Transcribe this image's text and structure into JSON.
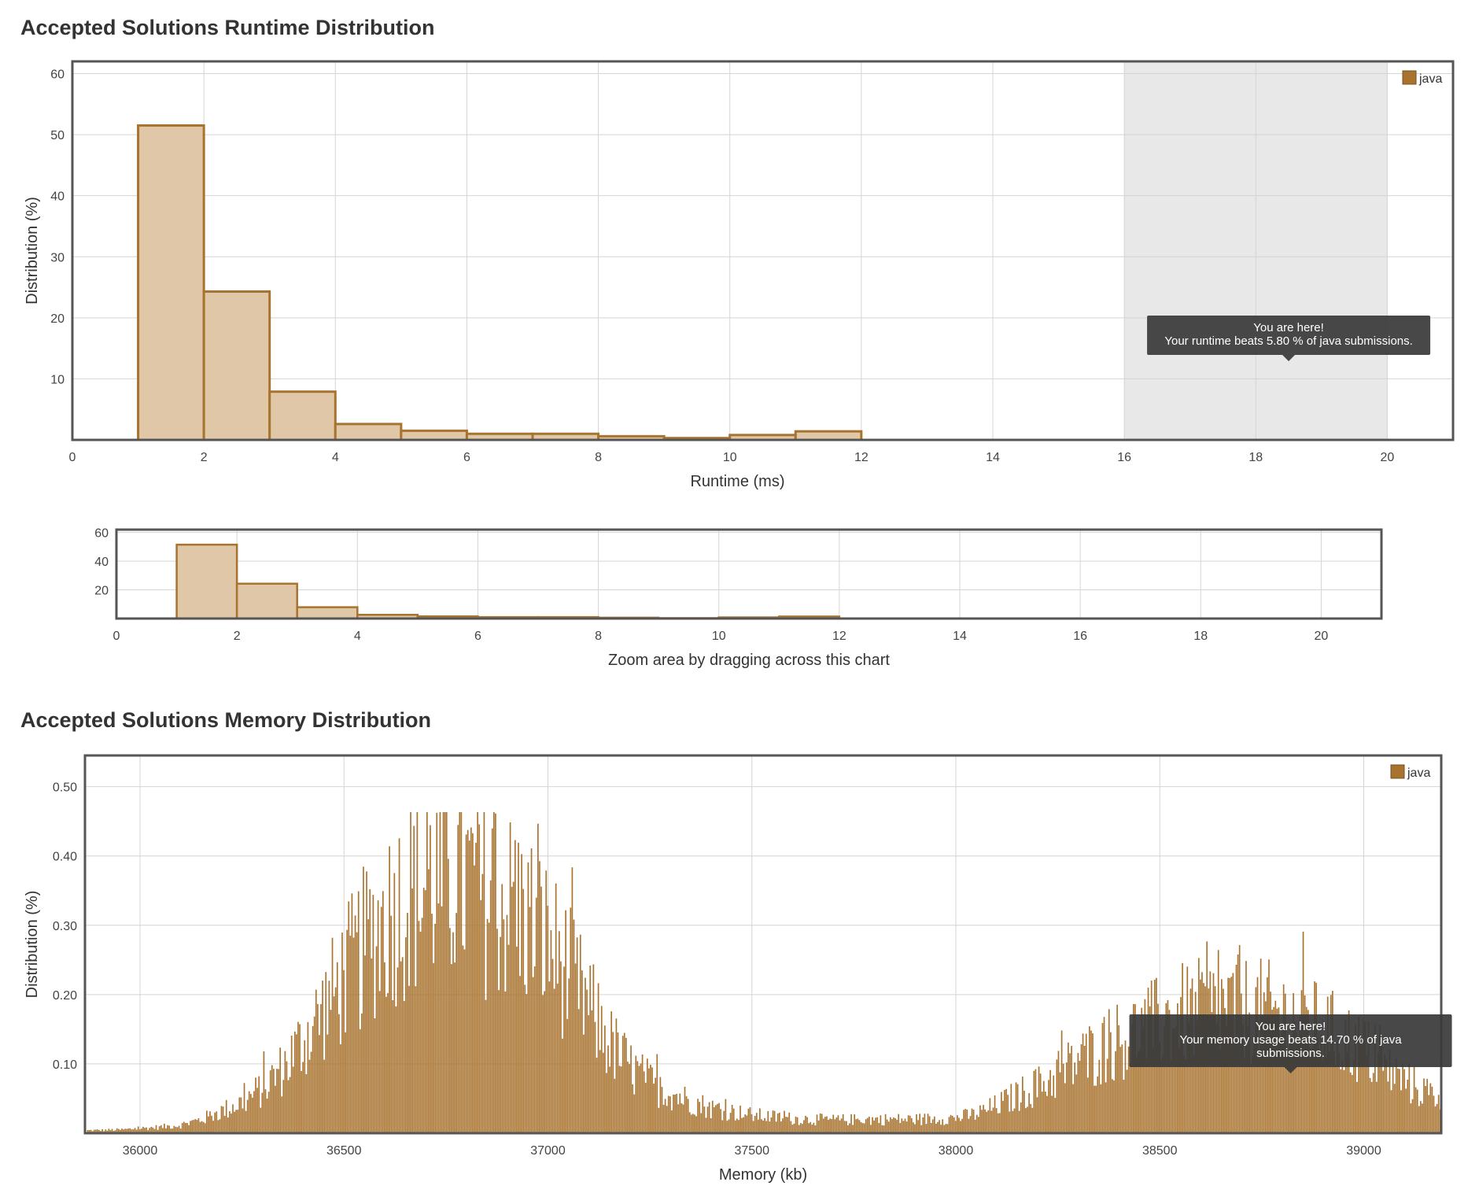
{
  "runtime_section": {
    "title": "Accepted Solutions Runtime Distribution"
  },
  "memory_section": {
    "title": "Accepted Solutions Memory Distribution"
  },
  "colors": {
    "bar_stroke": "#a8732f",
    "bar_fill": "#dfc7a7",
    "memory_fill": "#a8732f",
    "grid": "#d4d4d4",
    "frame": "#555555",
    "highlight": "#e8e8e8",
    "tooltip": "#3a3a3a"
  },
  "chart_data": [
    {
      "id": "runtime",
      "type": "bar",
      "xlabel": "Runtime (ms)",
      "ylabel": "Distribution (%)",
      "xlim": [
        0,
        21
      ],
      "ylim": [
        0,
        62
      ],
      "xticks": [
        0,
        2,
        4,
        6,
        8,
        10,
        12,
        14,
        16,
        18,
        20
      ],
      "yticks": [
        10,
        20,
        30,
        40,
        50,
        60
      ],
      "grid": true,
      "legend": {
        "position": "top-right",
        "entries": [
          "java"
        ]
      },
      "bins": [
        {
          "x0": 1,
          "x1": 2,
          "value": 51.5
        },
        {
          "x0": 2,
          "x1": 3,
          "value": 24.3
        },
        {
          "x0": 3,
          "x1": 4,
          "value": 7.9
        },
        {
          "x0": 4,
          "x1": 5,
          "value": 2.6
        },
        {
          "x0": 5,
          "x1": 6,
          "value": 1.5
        },
        {
          "x0": 6,
          "x1": 7,
          "value": 1.0
        },
        {
          "x0": 7,
          "x1": 8,
          "value": 1.0
        },
        {
          "x0": 8,
          "x1": 9,
          "value": 0.6
        },
        {
          "x0": 9,
          "x1": 10,
          "value": 0.3
        },
        {
          "x0": 10,
          "x1": 11,
          "value": 0.8
        },
        {
          "x0": 11,
          "x1": 12,
          "value": 1.4
        }
      ],
      "highlight_range": [
        16,
        20
      ],
      "tooltip": {
        "line1": "You are here!",
        "line2": "Your runtime beats 5.80 % of java submissions.",
        "x": 18.5
      }
    },
    {
      "id": "zoom",
      "type": "bar",
      "xlabel": "Zoom area by dragging across this chart",
      "xlim": [
        0,
        21
      ],
      "ylim": [
        0,
        62
      ],
      "xticks": [
        0,
        2,
        4,
        6,
        8,
        10,
        12,
        14,
        16,
        18,
        20
      ],
      "yticks": [
        20,
        40,
        60
      ],
      "grid": true
    },
    {
      "id": "memory",
      "type": "bar",
      "xlabel": "Memory (kb)",
      "ylabel": "Distribution (%)",
      "xlim": [
        35865,
        39190
      ],
      "ylim": [
        0,
        0.545
      ],
      "xticks": [
        36000,
        36500,
        37000,
        37500,
        38000,
        38500,
        39000
      ],
      "yticks": [
        0.1,
        0.2,
        0.3,
        0.4,
        0.5
      ],
      "ytick_labels": [
        "0.10",
        "0.20",
        "0.30",
        "0.40",
        "0.50"
      ],
      "grid": true,
      "legend": {
        "position": "top-right",
        "entries": [
          "java"
        ]
      },
      "bin_width_kb": 4,
      "envelope": [
        [
          35870,
          0.004
        ],
        [
          35950,
          0.005
        ],
        [
          36000,
          0.007
        ],
        [
          36050,
          0.009
        ],
        [
          36100,
          0.012
        ],
        [
          36150,
          0.02
        ],
        [
          36200,
          0.032
        ],
        [
          36250,
          0.045
        ],
        [
          36300,
          0.065
        ],
        [
          36350,
          0.095
        ],
        [
          36400,
          0.135
        ],
        [
          36450,
          0.18
        ],
        [
          36500,
          0.225
        ],
        [
          36550,
          0.27
        ],
        [
          36600,
          0.31
        ],
        [
          36650,
          0.34
        ],
        [
          36700,
          0.36
        ],
        [
          36750,
          0.365
        ],
        [
          36800,
          0.36
        ],
        [
          36850,
          0.345
        ],
        [
          36900,
          0.33
        ],
        [
          36950,
          0.31
        ],
        [
          37000,
          0.275
        ],
        [
          37050,
          0.23
        ],
        [
          37100,
          0.18
        ],
        [
          37150,
          0.13
        ],
        [
          37200,
          0.095
        ],
        [
          37250,
          0.072
        ],
        [
          37300,
          0.058
        ],
        [
          37350,
          0.046
        ],
        [
          37400,
          0.036
        ],
        [
          37500,
          0.026
        ],
        [
          37600,
          0.021
        ],
        [
          37700,
          0.019
        ],
        [
          37800,
          0.02
        ],
        [
          37900,
          0.02
        ],
        [
          38000,
          0.022
        ],
        [
          38050,
          0.028
        ],
        [
          38100,
          0.04
        ],
        [
          38150,
          0.055
        ],
        [
          38200,
          0.068
        ],
        [
          38250,
          0.085
        ],
        [
          38300,
          0.105
        ],
        [
          38350,
          0.12
        ],
        [
          38400,
          0.135
        ],
        [
          38450,
          0.145
        ],
        [
          38500,
          0.16
        ],
        [
          38550,
          0.17
        ],
        [
          38600,
          0.175
        ],
        [
          38650,
          0.18
        ],
        [
          38700,
          0.178
        ],
        [
          38750,
          0.175
        ],
        [
          38800,
          0.17
        ],
        [
          38850,
          0.162
        ],
        [
          38900,
          0.15
        ],
        [
          38950,
          0.135
        ],
        [
          39000,
          0.12
        ],
        [
          39050,
          0.095
        ],
        [
          39100,
          0.075
        ],
        [
          39150,
          0.06
        ],
        [
          39190,
          0.05
        ]
      ],
      "tooltip": {
        "line1": "You are here!",
        "line2": "Your memory usage beats 14.70 % of java",
        "line3": "submissions.",
        "x": 38840
      }
    }
  ]
}
